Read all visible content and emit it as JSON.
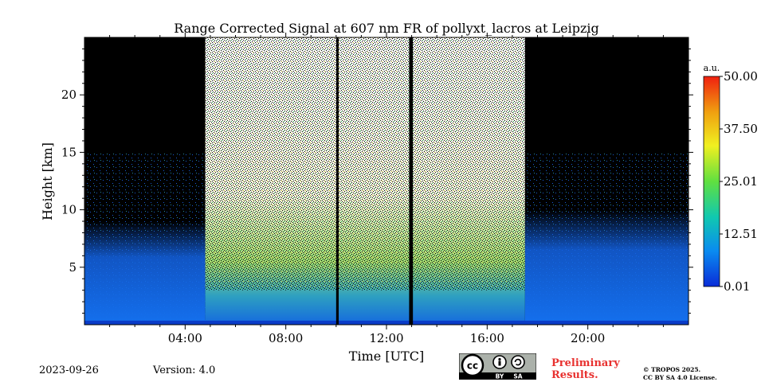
{
  "chart_data": {
    "type": "heatmap",
    "title": "Range Corrected Signal at 607 nm FR of pollyxt_lacros at Leipzig",
    "xlabel": "Time [UTC]",
    "ylabel": "Height [km]",
    "xlim_hours": [
      0,
      24
    ],
    "ylim_km": [
      0,
      25
    ],
    "x_ticks": [
      {
        "hour": 4,
        "label": "04:00"
      },
      {
        "hour": 8,
        "label": "08:00"
      },
      {
        "hour": 12,
        "label": "12:00"
      },
      {
        "hour": 16,
        "label": "16:00"
      },
      {
        "hour": 20,
        "label": "20:00"
      }
    ],
    "y_ticks": [
      {
        "km": 5,
        "label": "5"
      },
      {
        "km": 10,
        "label": "10"
      },
      {
        "km": 15,
        "label": "15"
      },
      {
        "km": 20,
        "label": "20"
      }
    ],
    "colorbar": {
      "unit": "a.u.",
      "min": 0.01,
      "max": 50.0,
      "ticks": [
        "0.01",
        "12.51",
        "25.01",
        "37.50",
        "50.00"
      ],
      "colors": [
        "#0a2cd8",
        "#0a8cf0",
        "#10c8b0",
        "#60e040",
        "#f0f020",
        "#f0a010",
        "#f02010"
      ]
    },
    "daylight_period_hours": [
      4.8,
      17.5
    ],
    "data_gaps_hours": [
      [
        10.0,
        10.1
      ],
      [
        12.9,
        13.05
      ]
    ],
    "colors": {
      "night_background": "#000000",
      "boundary_layer": "#1464e6",
      "surface": "#0a3cc8",
      "saturated_noise": "#ffffff"
    }
  },
  "footer": {
    "date": "2023-09-26",
    "version": "Version: 4.0",
    "preliminary_line1": "Preliminary",
    "preliminary_line2": "Results.",
    "copyright": "© TROPOS 2025.",
    "license": "CC BY SA 4.0 License.",
    "cc_by": "BY",
    "cc_sa": "SA"
  }
}
